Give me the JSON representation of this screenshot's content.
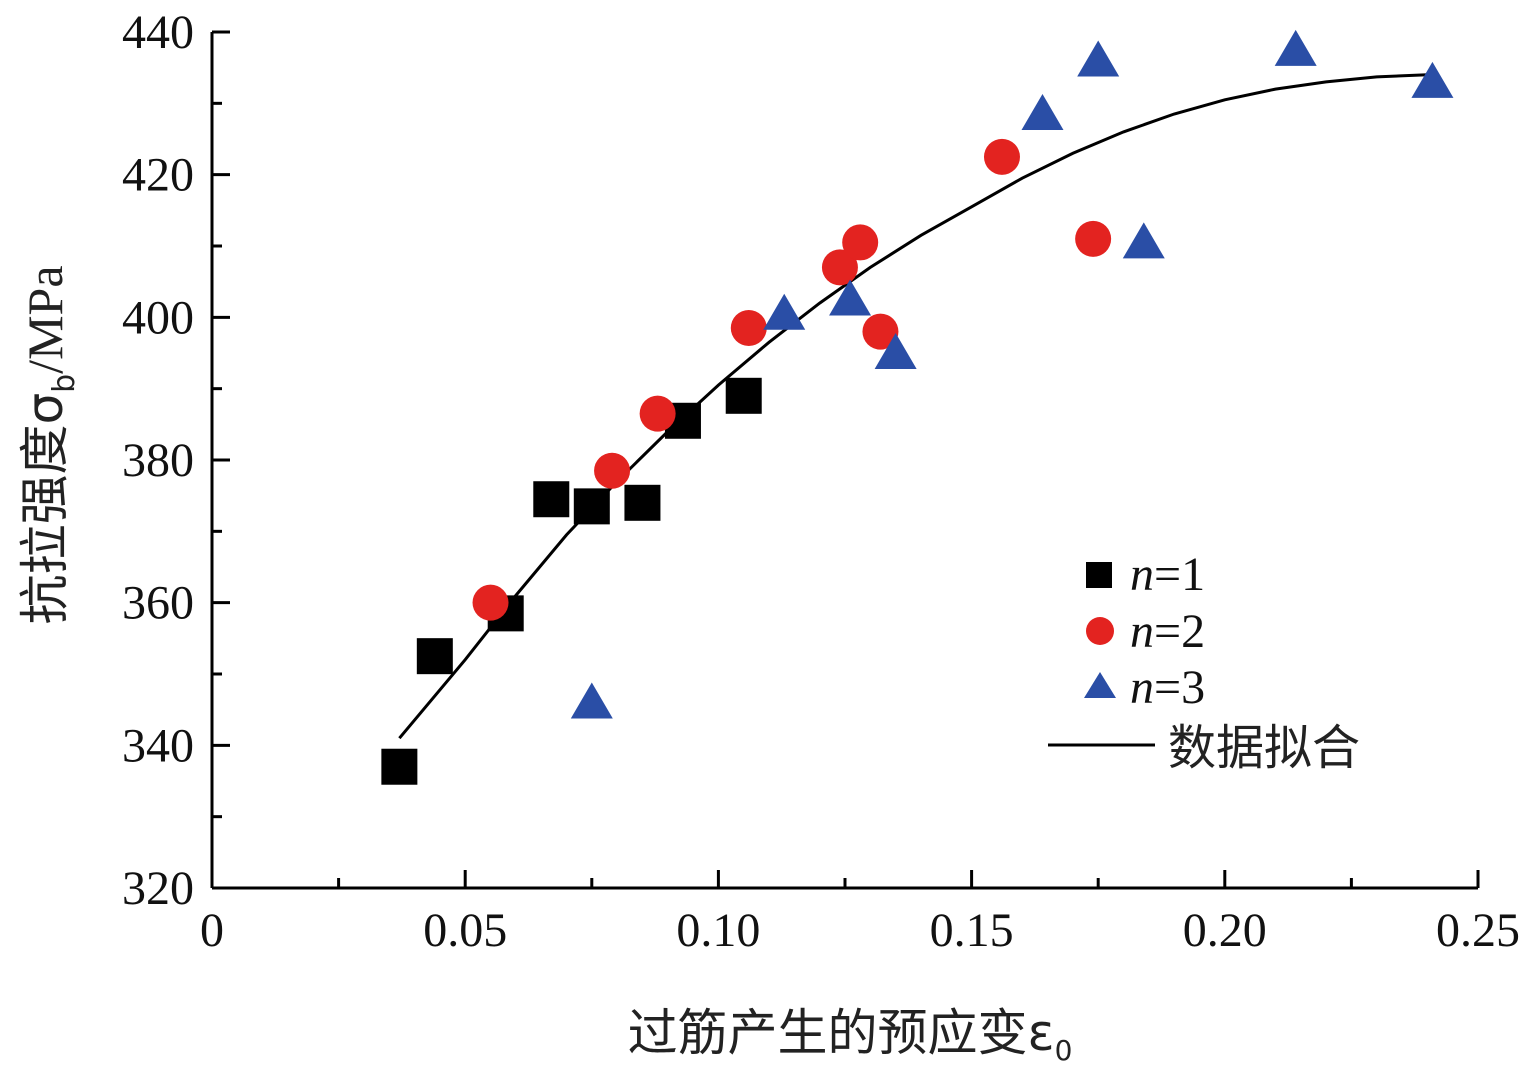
{
  "chart_data": {
    "type": "scatter",
    "xlabel": "过筋产生的预应变ε",
    "xlabel_sub": "0",
    "ylabel": "抗拉强度σ",
    "ylabel_sub": "b",
    "ylabel_unit": "/MPa",
    "xlim": [
      0,
      0.25
    ],
    "ylim": [
      320,
      440
    ],
    "x_ticks": [
      0,
      0.05,
      0.1,
      0.15,
      0.2,
      0.25
    ],
    "x_tick_labels": [
      "0",
      "0.05",
      "0.10",
      "0.15",
      "0.20",
      "0.25"
    ],
    "y_ticks": [
      320,
      340,
      360,
      380,
      400,
      420,
      440
    ],
    "y_tick_labels": [
      "320",
      "340",
      "360",
      "380",
      "400",
      "420",
      "440"
    ],
    "grid": false,
    "legend_position": "bottom-right",
    "series": [
      {
        "name": "n=1",
        "legend_var": "n",
        "legend_eq": "=1",
        "marker": "square",
        "color": "#000000",
        "points": [
          [
            0.037,
            337
          ],
          [
            0.044,
            352.5
          ],
          [
            0.058,
            358.5
          ],
          [
            0.067,
            374.5
          ],
          [
            0.075,
            373.5
          ],
          [
            0.085,
            374
          ],
          [
            0.093,
            385.5
          ],
          [
            0.105,
            389
          ]
        ]
      },
      {
        "name": "n=2",
        "legend_var": "n",
        "legend_eq": "=2",
        "marker": "circle",
        "color": "#e32320",
        "points": [
          [
            0.055,
            360
          ],
          [
            0.079,
            378.5
          ],
          [
            0.088,
            386.5
          ],
          [
            0.106,
            398.5
          ],
          [
            0.124,
            407
          ],
          [
            0.128,
            410.5
          ],
          [
            0.132,
            398
          ],
          [
            0.156,
            422.5
          ],
          [
            0.174,
            411
          ]
        ]
      },
      {
        "name": "n=3",
        "legend_var": "n",
        "legend_eq": "=3",
        "marker": "triangle",
        "color": "#2a4ea6",
        "points": [
          [
            0.075,
            346
          ],
          [
            0.113,
            400.5
          ],
          [
            0.126,
            402.5
          ],
          [
            0.135,
            395
          ],
          [
            0.164,
            428.5
          ],
          [
            0.175,
            436
          ],
          [
            0.184,
            410.5
          ],
          [
            0.214,
            437.5
          ],
          [
            0.241,
            433
          ]
        ]
      },
      {
        "name": "数据拟合",
        "marker": "line",
        "color": "#000000",
        "points": [
          [
            0.037,
            341
          ],
          [
            0.05,
            352
          ],
          [
            0.06,
            361
          ],
          [
            0.07,
            369.5
          ],
          [
            0.08,
            377
          ],
          [
            0.09,
            384
          ],
          [
            0.1,
            390.5
          ],
          [
            0.11,
            396.5
          ],
          [
            0.12,
            402
          ],
          [
            0.13,
            407
          ],
          [
            0.14,
            411.5
          ],
          [
            0.15,
            415.5
          ],
          [
            0.16,
            419.5
          ],
          [
            0.17,
            423
          ],
          [
            0.18,
            426
          ],
          [
            0.19,
            428.5
          ],
          [
            0.2,
            430.5
          ],
          [
            0.21,
            432
          ],
          [
            0.22,
            433
          ],
          [
            0.23,
            433.7
          ],
          [
            0.24,
            434
          ]
        ]
      }
    ]
  }
}
